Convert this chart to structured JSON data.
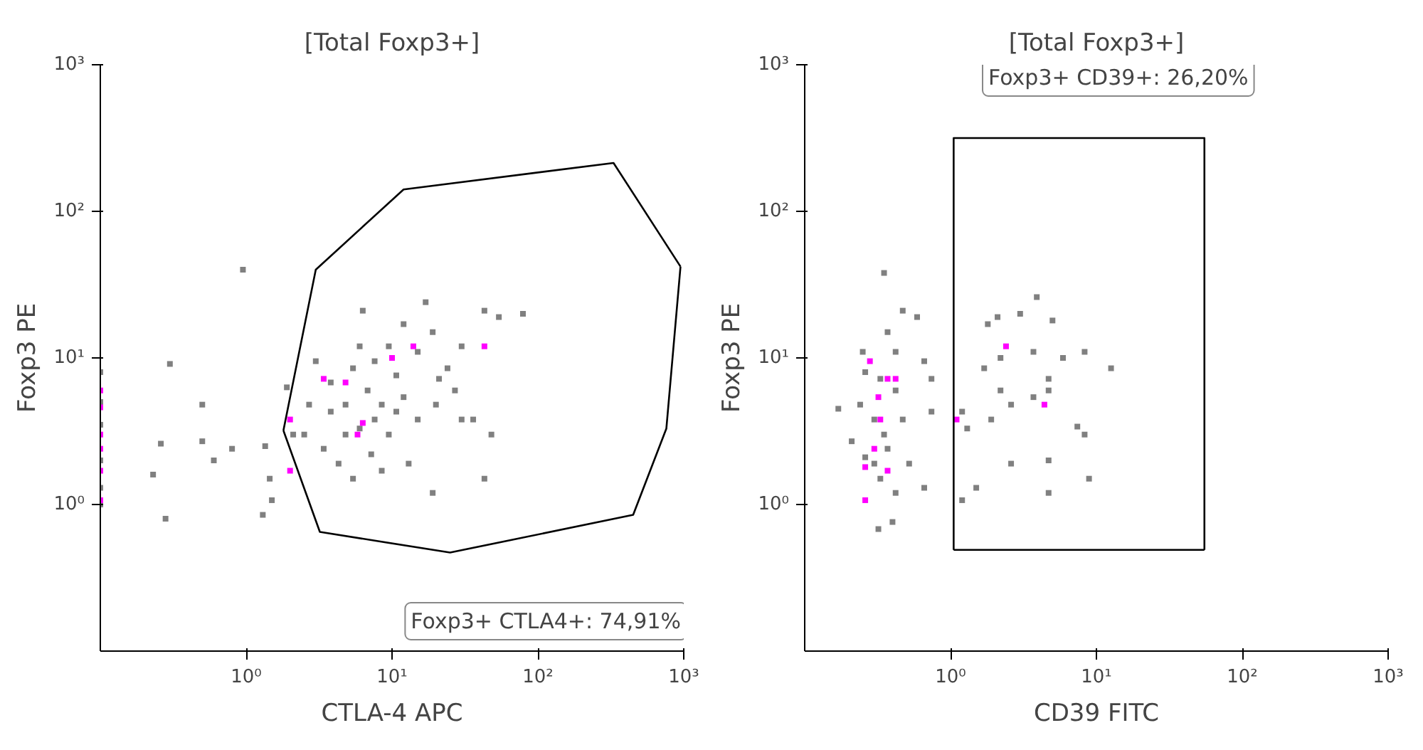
{
  "chart_data": [
    {
      "type": "scatter",
      "title": "[Total Foxp3+]",
      "xlabel": "CTLA-4 APC",
      "ylabel": "Foxp3 PE",
      "log": "xy",
      "marker": "square",
      "grid": false,
      "xlim": [
        0.1,
        1000
      ],
      "ylim": [
        0.1,
        1000
      ],
      "xticks": [
        {
          "value": 1,
          "label": "10⁰"
        },
        {
          "value": 10,
          "label": "10¹"
        },
        {
          "value": 100,
          "label": "10²"
        },
        {
          "value": 1000,
          "label": "10³"
        }
      ],
      "yticks": [
        {
          "value": 1,
          "label": "10⁰"
        },
        {
          "value": 10,
          "label": "10¹"
        },
        {
          "value": 100,
          "label": "10²"
        },
        {
          "value": 1000,
          "label": "10³"
        }
      ],
      "annotations": [
        "Foxp3+ CTLA4+: 74,91%"
      ],
      "series": [
        {
          "color": "#808080",
          "x": [
            0.95,
            0.3,
            0.5,
            0.26,
            0.23,
            0.28,
            0.5,
            0.6,
            0.8,
            1.35,
            1.45,
            1.5,
            1.3,
            1.9,
            2.1,
            3.0,
            3.8,
            4.8,
            6,
            6.3,
            7.6,
            9.5,
            10.7,
            12,
            15,
            19,
            24,
            30,
            43,
            54,
            79,
            17,
            2.7,
            2.5,
            3.4,
            4.3,
            5.4,
            7.2,
            8.5,
            13,
            19,
            15,
            30,
            36,
            48,
            43,
            7.6,
            5.4,
            9.5,
            12,
            6,
            4.8,
            3.8,
            6.8,
            8.5,
            10.7,
            21,
            27,
            20,
            0.1,
            0.1,
            0.1,
            0.1,
            0.1,
            0.1
          ],
          "values": [
            40,
            9.1,
            4.8,
            2.6,
            1.6,
            0.8,
            2.7,
            2.0,
            2.4,
            2.5,
            1.5,
            1.07,
            0.85,
            6.3,
            3.0,
            9.5,
            6.8,
            4.8,
            12,
            21,
            3.8,
            3.0,
            7.6,
            5.4,
            11,
            15,
            8.5,
            12,
            21,
            19,
            20,
            24,
            4.8,
            3.0,
            2.4,
            1.9,
            1.5,
            2.2,
            1.7,
            1.9,
            1.2,
            3.8,
            3.8,
            3.8,
            3.0,
            1.5,
            9.5,
            8.5,
            12,
            17,
            3.3,
            3.0,
            4.3,
            6.0,
            4.8,
            4.3,
            7.2,
            6.0,
            4.8,
            8,
            5,
            3.5,
            2,
            1.3,
            1
          ]
        },
        {
          "color": "#ff00ff",
          "x": [
            2.0,
            4.8,
            5.8,
            6.3,
            3.4,
            10,
            14,
            43,
            2.0,
            0.1,
            0.1,
            0.1,
            0.1,
            0.1,
            0.1
          ],
          "values": [
            3.8,
            6.8,
            3.0,
            3.6,
            7.2,
            10,
            12,
            12,
            1.7,
            6.0,
            4.6,
            3.0,
            2.4,
            1.7,
            1.07
          ]
        },
        {
          "type": "line",
          "marker": "none",
          "line_style": "solid",
          "color": "#000000",
          "x": [
            1.8,
            3.0,
            12,
            330,
            950
          ],
          "values": [
            3.2,
            40,
            141,
            214,
            42
          ]
        },
        {
          "type": "line",
          "marker": "none",
          "line_style": "solid",
          "color": "#000000",
          "x": [
            1.8,
            3.2,
            25,
            450,
            760,
            950
          ],
          "values": [
            3.2,
            0.65,
            0.47,
            0.85,
            3.3,
            42
          ]
        }
      ]
    },
    {
      "type": "scatter",
      "title": "[Total Foxp3+]",
      "xlabel": "CD39 FITC",
      "ylabel": "Foxp3 PE",
      "log": "xy",
      "marker": "square",
      "grid": false,
      "xlim": [
        0.1,
        1000
      ],
      "ylim": [
        0.1,
        1000
      ],
      "xticks": [
        {
          "value": 1,
          "label": "10⁰"
        },
        {
          "value": 10,
          "label": "10¹"
        },
        {
          "value": 100,
          "label": "10²"
        },
        {
          "value": 1000,
          "label": "10³"
        }
      ],
      "yticks": [
        {
          "value": 1,
          "label": "10⁰"
        },
        {
          "value": 10,
          "label": "10¹"
        },
        {
          "value": 100,
          "label": "10²"
        },
        {
          "value": 1000,
          "label": "10³"
        }
      ],
      "annotations": [
        "Foxp3+ CD39+: 26,20%"
      ],
      "series": [
        {
          "color": "#808080",
          "x": [
            0.35,
            0.47,
            0.37,
            0.59,
            0.25,
            0.33,
            0.66,
            0.42,
            0.24,
            0.3,
            0.35,
            0.47,
            0.74,
            0.17,
            0.26,
            0.33,
            0.42,
            0.21,
            0.52,
            0.66,
            0.32,
            0.4,
            0.3,
            0.37,
            0.26,
            0.42,
            0.74,
            3.9,
            1.8,
            2.1,
            3.0,
            5.0,
            1.7,
            2.2,
            3.7,
            5.9,
            8.3,
            12.6,
            4.7,
            3.7,
            4.7,
            2.2,
            1.9,
            2.6,
            7.4,
            8.3,
            2.6,
            4.7,
            8.9,
            1.2,
            1.5,
            4.7,
            1.3,
            1.2
          ],
          "values": [
            38,
            21,
            15,
            19,
            11,
            7.2,
            9.5,
            6.0,
            4.8,
            3.8,
            3.0,
            3.8,
            4.3,
            4.5,
            2.1,
            1.5,
            1.2,
            2.7,
            1.9,
            1.3,
            0.68,
            0.76,
            1.9,
            2.4,
            8,
            11,
            7.2,
            26,
            17,
            19,
            20,
            18,
            8.5,
            10,
            11,
            10,
            11,
            8.5,
            7.2,
            5.4,
            6.0,
            6.0,
            3.8,
            4.8,
            3.4,
            3.0,
            1.9,
            2.0,
            1.5,
            1.07,
            1.3,
            1.2,
            3.3,
            4.3
          ]
        },
        {
          "color": "#ff00ff",
          "x": [
            0.28,
            0.37,
            0.32,
            0.33,
            0.3,
            0.37,
            0.26,
            0.42,
            0.26,
            2.4,
            4.4,
            1.1
          ],
          "values": [
            9.5,
            7.2,
            5.4,
            3.8,
            2.4,
            1.7,
            1.07,
            7.2,
            1.8,
            12,
            4.8,
            3.8
          ]
        },
        {
          "type": "line",
          "marker": "none",
          "line_style": "solid",
          "color": "#000000",
          "x": [
            1.05,
            1.05,
            55,
            55
          ],
          "values": [
            0.49,
            316,
            316,
            0.49
          ]
        },
        {
          "type": "line",
          "marker": "none",
          "line_style": "solid",
          "color": "#000000",
          "x": [
            1.05,
            55
          ],
          "values": [
            0.49,
            0.49
          ]
        }
      ]
    }
  ]
}
